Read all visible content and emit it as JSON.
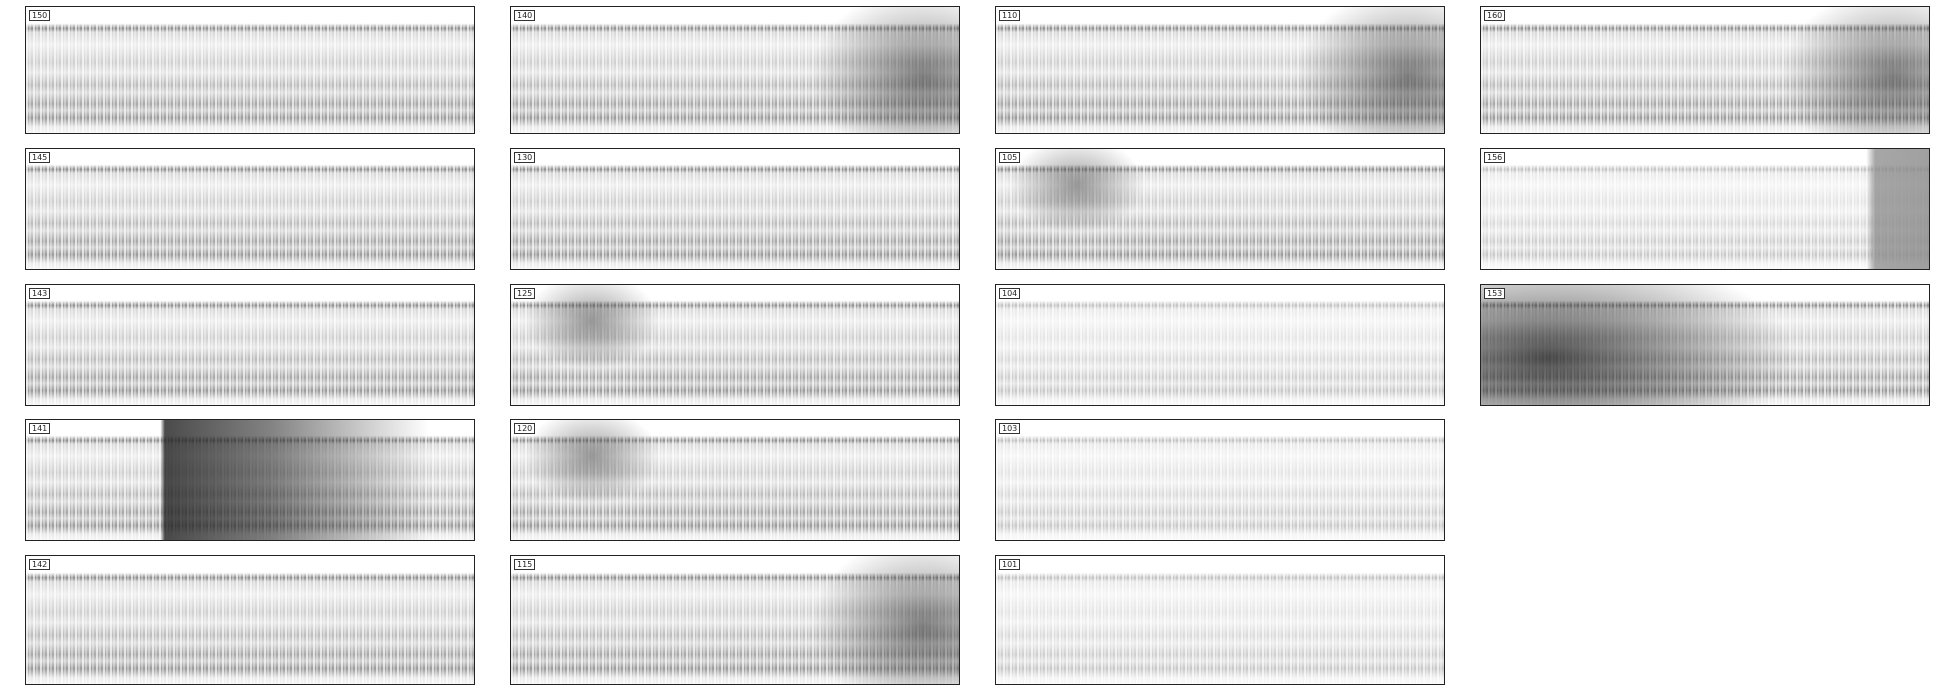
{
  "panels": [
    {
      "label": "150"
    },
    {
      "label": "145"
    },
    {
      "label": "143"
    },
    {
      "label": "141"
    },
    {
      "label": "142"
    },
    {
      "label": "140"
    },
    {
      "label": "130"
    },
    {
      "label": "125"
    },
    {
      "label": "120"
    },
    {
      "label": "115"
    },
    {
      "label": "110"
    },
    {
      "label": "105"
    },
    {
      "label": "104"
    },
    {
      "label": "103"
    },
    {
      "label": "101"
    },
    {
      "label": "160"
    },
    {
      "label": "156"
    },
    {
      "label": "153"
    }
  ]
}
